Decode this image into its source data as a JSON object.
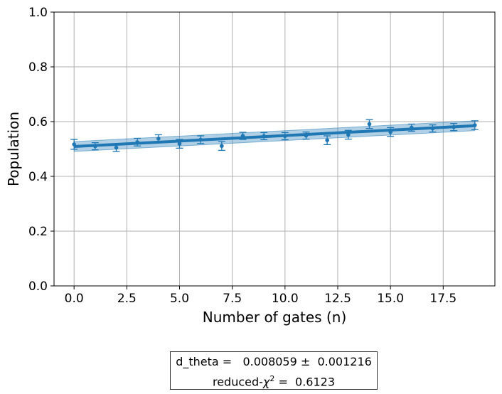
{
  "chart_data": {
    "type": "scatter",
    "xlabel": "Number of gates (n)",
    "ylabel": "Population",
    "xlim": [
      -0.95,
      19.95
    ],
    "ylim": [
      0.0,
      1.0
    ],
    "xticks": [
      "0.0",
      "2.5",
      "5.0",
      "7.5",
      "10.0",
      "12.5",
      "15.0",
      "17.5"
    ],
    "yticks": [
      "0.0",
      "0.2",
      "0.4",
      "0.6",
      "0.8",
      "1.0"
    ],
    "grid": true,
    "series": [
      {
        "kind": "points_with_errorbars",
        "x": [
          0,
          1,
          2,
          3,
          4,
          5,
          6,
          7,
          8,
          9,
          10,
          11,
          12,
          13,
          14,
          15,
          16,
          17,
          18,
          19
        ],
        "y": [
          0.517,
          0.51,
          0.505,
          0.525,
          0.538,
          0.519,
          0.534,
          0.511,
          0.548,
          0.547,
          0.547,
          0.549,
          0.532,
          0.552,
          0.591,
          0.562,
          0.578,
          0.575,
          0.58,
          0.587
        ],
        "yerr": [
          0.018,
          0.013,
          0.014,
          0.014,
          0.014,
          0.016,
          0.014,
          0.016,
          0.013,
          0.013,
          0.013,
          0.013,
          0.016,
          0.016,
          0.016,
          0.016,
          0.013,
          0.013,
          0.013,
          0.016
        ],
        "color": "#1f77b4"
      },
      {
        "kind": "fit_line",
        "x": [
          0,
          19
        ],
        "y": [
          0.509,
          0.585
        ],
        "band_halfwidth": [
          0.018,
          0.018
        ],
        "color": "#1f77b4"
      }
    ]
  },
  "fit_box": {
    "line1": "d_theta =   0.008059 ±  0.001216",
    "line2_prefix": "reduced-",
    "line2_chi": "χ",
    "line2_sup": "2",
    "line2_suffix": " =  0.6123"
  }
}
